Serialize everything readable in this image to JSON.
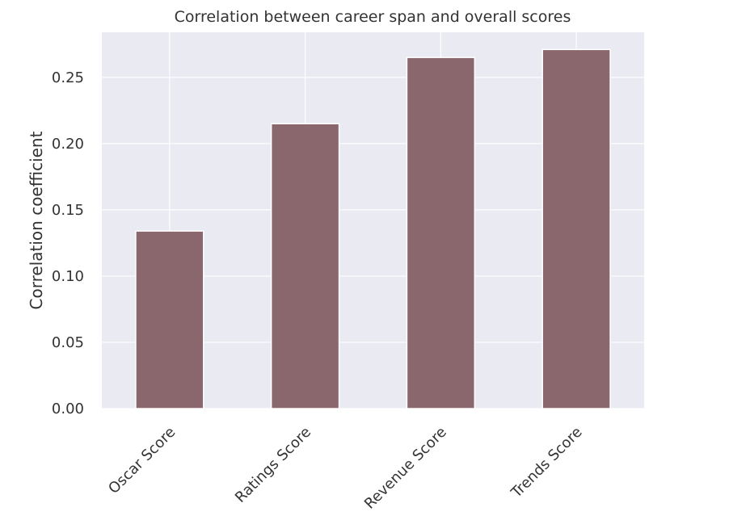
{
  "chart_data": {
    "type": "bar",
    "title": "Correlation between career span and overall scores",
    "xlabel": "",
    "ylabel": "Correlation coefficient",
    "categories": [
      "Oscar Score",
      "Ratings Score",
      "Revenue Score",
      "Trends Score"
    ],
    "values": [
      0.134,
      0.215,
      0.265,
      0.271
    ],
    "ylim": [
      0,
      0.284
    ],
    "yticks": [
      "0.00",
      "0.05",
      "0.10",
      "0.15",
      "0.20",
      "0.25"
    ],
    "grid": true,
    "legend": "none",
    "colors": {
      "bar": "#8a666d",
      "plot_background": "#eaeaf2",
      "grid": "#ffffff",
      "text": "#333333"
    }
  }
}
